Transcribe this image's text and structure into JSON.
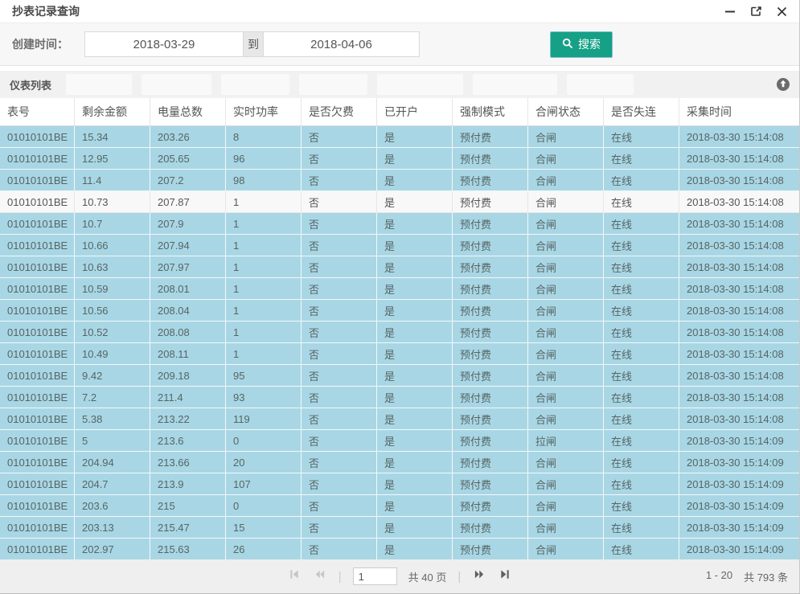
{
  "window": {
    "title": "抄表记录查询",
    "controls": {
      "minimize": "minimize-icon",
      "maximize": "maximize-icon",
      "close": "close-icon"
    }
  },
  "filter": {
    "label": "创建时间：",
    "date_from": "2018-03-29",
    "to_label": "到",
    "date_to": "2018-04-06",
    "search_button": "搜索"
  },
  "section": {
    "title": "仪表列表",
    "ghost_button_count": 7,
    "collapse_icon": "arrow-up-circle-icon"
  },
  "table": {
    "columns": [
      "表号",
      "剩余金额",
      "电量总数",
      "实时功率",
      "是否欠费",
      "已开户",
      "强制模式",
      "合闸状态",
      "是否失连",
      "采集时间"
    ],
    "highlighted_row": 4,
    "rows": [
      [
        "01010101BE",
        "15.34",
        "203.26",
        "8",
        "否",
        "是",
        "预付费",
        "合闸",
        "在线",
        "2018-03-30 15:14:08"
      ],
      [
        "01010101BE",
        "12.95",
        "205.65",
        "96",
        "否",
        "是",
        "预付费",
        "合闸",
        "在线",
        "2018-03-30 15:14:08"
      ],
      [
        "01010101BE",
        "11.4",
        "207.2",
        "98",
        "否",
        "是",
        "预付费",
        "合闸",
        "在线",
        "2018-03-30 15:14:08"
      ],
      [
        "01010101BE",
        "10.73",
        "207.87",
        "1",
        "否",
        "是",
        "预付费",
        "合闸",
        "在线",
        "2018-03-30 15:14:08"
      ],
      [
        "01010101BE",
        "10.7",
        "207.9",
        "1",
        "否",
        "是",
        "预付费",
        "合闸",
        "在线",
        "2018-03-30 15:14:08"
      ],
      [
        "01010101BE",
        "10.66",
        "207.94",
        "1",
        "否",
        "是",
        "预付费",
        "合闸",
        "在线",
        "2018-03-30 15:14:08"
      ],
      [
        "01010101BE",
        "10.63",
        "207.97",
        "1",
        "否",
        "是",
        "预付费",
        "合闸",
        "在线",
        "2018-03-30 15:14:08"
      ],
      [
        "01010101BE",
        "10.59",
        "208.01",
        "1",
        "否",
        "是",
        "预付费",
        "合闸",
        "在线",
        "2018-03-30 15:14:08"
      ],
      [
        "01010101BE",
        "10.56",
        "208.04",
        "1",
        "否",
        "是",
        "预付费",
        "合闸",
        "在线",
        "2018-03-30 15:14:08"
      ],
      [
        "01010101BE",
        "10.52",
        "208.08",
        "1",
        "否",
        "是",
        "预付费",
        "合闸",
        "在线",
        "2018-03-30 15:14:08"
      ],
      [
        "01010101BE",
        "10.49",
        "208.11",
        "1",
        "否",
        "是",
        "预付费",
        "合闸",
        "在线",
        "2018-03-30 15:14:08"
      ],
      [
        "01010101BE",
        "9.42",
        "209.18",
        "95",
        "否",
        "是",
        "预付费",
        "合闸",
        "在线",
        "2018-03-30 15:14:08"
      ],
      [
        "01010101BE",
        "7.2",
        "211.4",
        "93",
        "否",
        "是",
        "预付费",
        "合闸",
        "在线",
        "2018-03-30 15:14:08"
      ],
      [
        "01010101BE",
        "5.38",
        "213.22",
        "119",
        "否",
        "是",
        "预付费",
        "合闸",
        "在线",
        "2018-03-30 15:14:08"
      ],
      [
        "01010101BE",
        "5",
        "213.6",
        "0",
        "否",
        "是",
        "预付费",
        "拉闸",
        "在线",
        "2018-03-30 15:14:09"
      ],
      [
        "01010101BE",
        "204.94",
        "213.66",
        "20",
        "否",
        "是",
        "预付费",
        "合闸",
        "在线",
        "2018-03-30 15:14:09"
      ],
      [
        "01010101BE",
        "204.7",
        "213.9",
        "107",
        "否",
        "是",
        "预付费",
        "合闸",
        "在线",
        "2018-03-30 15:14:09"
      ],
      [
        "01010101BE",
        "203.6",
        "215",
        "0",
        "否",
        "是",
        "预付费",
        "合闸",
        "在线",
        "2018-03-30 15:14:09"
      ],
      [
        "01010101BE",
        "203.13",
        "215.47",
        "15",
        "否",
        "是",
        "预付费",
        "合闸",
        "在线",
        "2018-03-30 15:14:09"
      ],
      [
        "01010101BE",
        "202.97",
        "215.63",
        "26",
        "否",
        "是",
        "预付费",
        "合闸",
        "在线",
        "2018-03-30 15:14:09"
      ]
    ]
  },
  "pagination": {
    "page_input": "1",
    "total_pages": "共 40 页",
    "range": "1 - 20",
    "total_records": "共 793 条"
  },
  "colors": {
    "accent_green": "#16a085",
    "row_blue": "#a9d6e4",
    "row_highlight": "#f8f8f8"
  }
}
